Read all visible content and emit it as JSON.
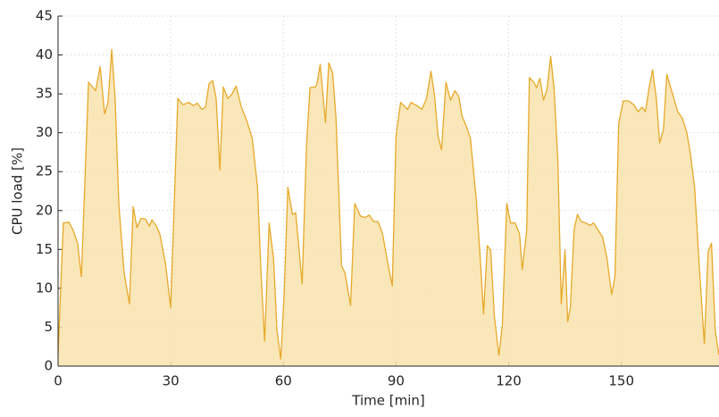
{
  "chart_data": {
    "type": "area",
    "x_label": "Time [min]",
    "y_label": "CPU load [%]",
    "xlim": [
      0,
      176
    ],
    "ylim": [
      0,
      45
    ],
    "xticks": [
      0,
      30,
      60,
      90,
      120,
      150
    ],
    "yticks": [
      0,
      5,
      10,
      15,
      20,
      25,
      30,
      35,
      40,
      45
    ],
    "grid": true,
    "x": [
      0,
      1.4,
      2.9,
      4,
      5.2,
      6.2,
      8.1,
      10,
      11.2,
      12.4,
      13.3,
      14.3,
      15.2,
      16.2,
      17.6,
      19,
      20,
      21,
      22.1,
      23.3,
      24.3,
      25,
      26.2,
      27.1,
      28.6,
      30,
      31.9,
      33.3,
      34.8,
      36,
      37.1,
      38.3,
      39.3,
      40.2,
      41.2,
      42.1,
      43.1,
      44,
      45.2,
      46.2,
      47.4,
      48.8,
      50.2,
      51.7,
      53.1,
      54,
      55,
      56.2,
      57.4,
      58.3,
      59.3,
      60.2,
      61.2,
      62.4,
      63.3,
      65,
      66.2,
      67.1,
      68.6,
      69,
      69.8,
      71.2,
      72.1,
      73.1,
      74,
      75.5,
      76.4,
      77.9,
      79,
      80.5,
      81.7,
      82.9,
      84,
      85.2,
      86.4,
      87.6,
      89,
      90,
      91.2,
      92.1,
      93.1,
      94,
      95.5,
      96.9,
      98.1,
      99.3,
      100.2,
      101.2,
      102.1,
      103.3,
      104.5,
      105.7,
      106.7,
      107.6,
      108.6,
      109.8,
      111.4,
      112.6,
      113.3,
      114.3,
      115.2,
      116.2,
      117.4,
      118.3,
      119.5,
      120.5,
      121.7,
      122.9,
      123.6,
      124.8,
      125.5,
      126.7,
      127.4,
      128.3,
      129.3,
      130.2,
      131.2,
      132.1,
      133.1,
      134,
      135,
      135.7,
      136.4,
      137.4,
      138.3,
      139.3,
      140.5,
      141.7,
      142.6,
      143.8,
      145,
      146.2,
      147.4,
      148.3,
      149.3,
      150.5,
      151.9,
      153.3,
      154.5,
      155.5,
      156.4,
      157.4,
      158.3,
      159.3,
      160.2,
      161.2,
      162.1,
      163.6,
      165,
      166.2,
      167.4,
      168.3,
      169.5,
      170.7,
      172.1,
      173.1,
      174,
      175,
      176
    ],
    "series": [
      {
        "color": "#e6a92a",
        "fill": "#f8e3ad",
        "values": [
          1.5,
          18.4,
          18.5,
          17.5,
          15.8,
          11.5,
          36.5,
          35.4,
          38.5,
          32.4,
          33.9,
          40.7,
          34.4,
          20.7,
          12,
          8,
          20.5,
          17.8,
          19,
          18.9,
          18,
          18.8,
          18,
          17,
          13.2,
          7.5,
          34.4,
          33.6,
          33.9,
          33.5,
          33.8,
          33,
          33.3,
          36.3,
          36.7,
          34.4,
          25.2,
          35.9,
          34.4,
          34.9,
          36,
          33.3,
          31.6,
          29.3,
          23,
          12.6,
          3.2,
          18.4,
          13.8,
          4.6,
          0.9,
          9.2,
          23,
          19.5,
          19.7,
          10.6,
          28.7,
          35.8,
          35.9,
          36.4,
          38.8,
          31.3,
          39,
          37.7,
          32.1,
          12.9,
          12,
          7.8,
          20.9,
          19.3,
          19.1,
          19.4,
          18.6,
          18.6,
          17,
          13.8,
          10.3,
          29.6,
          33.9,
          33.5,
          33,
          33.9,
          33.5,
          33,
          34.4,
          37.9,
          35,
          29.6,
          27.8,
          36.5,
          34.2,
          35.4,
          34.7,
          32.1,
          31,
          29.3,
          21.2,
          12.6,
          6.7,
          15.5,
          14.9,
          6.3,
          1.4,
          5.2,
          20.9,
          18.4,
          18.4,
          17,
          12.4,
          17.5,
          37.1,
          36.5,
          35.8,
          37,
          34.2,
          35.6,
          39.8,
          35.6,
          26.4,
          8,
          14.9,
          5.7,
          7.5,
          17.5,
          19.5,
          18.6,
          18.4,
          18.1,
          18.4,
          17.5,
          16.6,
          13.8,
          9.2,
          11.5,
          31.2,
          34.1,
          34.1,
          33.6,
          32.7,
          33.3,
          32.7,
          35.8,
          38.1,
          34.4,
          28.7,
          30.4,
          37.5,
          35,
          32.7,
          31.9,
          30.1,
          27.6,
          23,
          13.2,
          2.9,
          14.7,
          15.8,
          4.6,
          1.4
        ]
      }
    ]
  }
}
